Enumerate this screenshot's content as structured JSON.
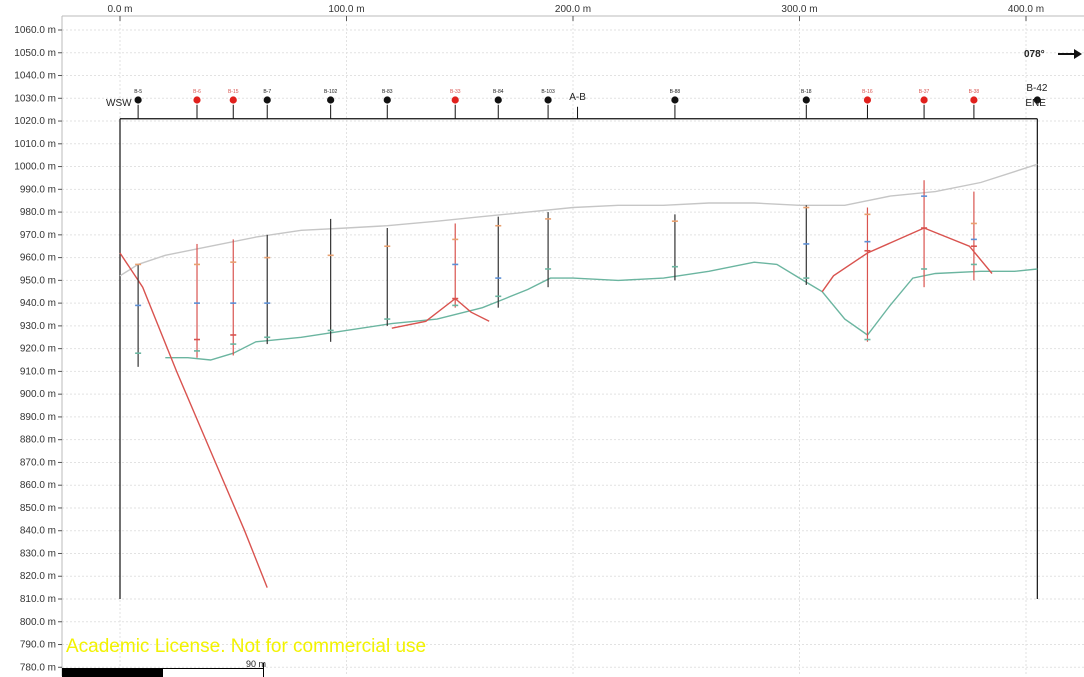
{
  "chart_data": {
    "type": "line",
    "title": "",
    "section_name": "A-B",
    "start_label": "WSW",
    "end_label": "ENE",
    "end_borehole_label": "B-42",
    "azimuth": "078°",
    "x_unit": "m",
    "y_unit": "m",
    "xlim": [
      -25,
      415
    ],
    "ylim": [
      776,
      1064
    ],
    "x_ticks": [
      {
        "value": 0,
        "label": "0.0 m"
      },
      {
        "value": 100,
        "label": "100.0 m"
      },
      {
        "value": 200,
        "label": "200.0 m"
      },
      {
        "value": 300,
        "label": "300.0 m"
      },
      {
        "value": 400,
        "label": "400.0 m"
      }
    ],
    "y_ticks": [
      {
        "value": 780,
        "label": "780.0 m"
      },
      {
        "value": 790,
        "label": "790.0 m"
      },
      {
        "value": 800,
        "label": "800.0 m"
      },
      {
        "value": 810,
        "label": "810.0 m"
      },
      {
        "value": 820,
        "label": "820.0 m"
      },
      {
        "value": 830,
        "label": "830.0 m"
      },
      {
        "value": 840,
        "label": "840.0 m"
      },
      {
        "value": 850,
        "label": "850.0 m"
      },
      {
        "value": 860,
        "label": "860.0 m"
      },
      {
        "value": 870,
        "label": "870.0 m"
      },
      {
        "value": 880,
        "label": "880.0 m"
      },
      {
        "value": 890,
        "label": "890.0 m"
      },
      {
        "value": 900,
        "label": "900.0 m"
      },
      {
        "value": 910,
        "label": "910.0 m"
      },
      {
        "value": 920,
        "label": "920.0 m"
      },
      {
        "value": 930,
        "label": "930.0 m"
      },
      {
        "value": 940,
        "label": "940.0 m"
      },
      {
        "value": 950,
        "label": "950.0 m"
      },
      {
        "value": 960,
        "label": "960.0 m"
      },
      {
        "value": 970,
        "label": "970.0 m"
      },
      {
        "value": 980,
        "label": "980.0 m"
      },
      {
        "value": 990,
        "label": "990.0 m"
      },
      {
        "value": 1000,
        "label": "1000.0 m"
      },
      {
        "value": 1010,
        "label": "1010.0 m"
      },
      {
        "value": 1020,
        "label": "1020.0 m"
      },
      {
        "value": 1030,
        "label": "1030.0 m"
      },
      {
        "value": 1040,
        "label": "1040.0 m"
      },
      {
        "value": 1050,
        "label": "1050.0 m"
      },
      {
        "value": 1060,
        "label": "1060.0 m"
      }
    ],
    "grid": true,
    "frame": {
      "x_start": 0,
      "x_end": 405,
      "top": 1021,
      "bottom": 810,
      "section_mark_x": 202
    },
    "colors": {
      "terrain": "#c6c6c6",
      "aquifer": "#6bb5a0",
      "red_horizon": "#d9534f",
      "borehole_black": "#111111",
      "borehole_red": "#e0201c",
      "watermark": "#f2f200"
    },
    "series": [
      {
        "name": "",
        "color": "#c6c6c6",
        "x": [
          0,
          8,
          20,
          40,
          60,
          80,
          100,
          118,
          140,
          160,
          180,
          200,
          220,
          240,
          260,
          280,
          300,
          320,
          340,
          360,
          380,
          405
        ],
        "y": [
          952,
          957,
          961,
          965,
          969,
          972,
          973,
          974,
          976,
          978,
          980,
          982,
          983,
          983,
          984,
          984,
          983,
          983,
          987,
          989,
          993,
          1001
        ]
      },
      {
        "name": "",
        "color": "#6bb5a0",
        "x": [
          20,
          30,
          40,
          50,
          60,
          80,
          100,
          120,
          140,
          160,
          170,
          180,
          190,
          200,
          220,
          240,
          260,
          280,
          290,
          300,
          305,
          310,
          320,
          330,
          340,
          350,
          360,
          380,
          395,
          405
        ],
        "y": [
          916,
          916,
          915,
          918,
          923,
          925,
          928,
          931,
          933,
          938,
          942,
          946,
          951,
          951,
          950,
          951,
          954,
          958,
          957,
          951,
          948,
          945,
          933,
          926,
          939,
          951,
          953,
          954,
          954,
          955
        ]
      },
      {
        "name": "",
        "color": "#d9534f",
        "x": [
          0,
          10,
          25,
          40,
          55,
          65
        ],
        "y": [
          962,
          947,
          910,
          875,
          840,
          815
        ]
      },
      {
        "name": "",
        "color": "#d9534f",
        "x": [
          120,
          135,
          148,
          155,
          163
        ],
        "y": [
          929,
          932,
          942,
          936,
          932
        ]
      },
      {
        "name": "",
        "color": "#d9534f",
        "x": [
          310,
          315,
          330,
          355,
          375,
          385
        ],
        "y": [
          945,
          952,
          962,
          973,
          965,
          953
        ]
      }
    ],
    "boreholes": [
      {
        "label": "B-5",
        "x": 8,
        "color": "black",
        "top": 957,
        "bottom": 912,
        "marks": [
          {
            "y": 957,
            "c": "#e8a070"
          },
          {
            "y": 939,
            "c": "#5c8fd6"
          },
          {
            "y": 918,
            "c": "#6bb5a0"
          }
        ]
      },
      {
        "label": "B-6",
        "x": 34,
        "color": "red",
        "top": 966,
        "bottom": 916,
        "marks": [
          {
            "y": 957,
            "c": "#e8a070"
          },
          {
            "y": 940,
            "c": "#5c8fd6"
          },
          {
            "y": 924,
            "c": "#d9534f"
          },
          {
            "y": 919,
            "c": "#6bb5a0"
          }
        ]
      },
      {
        "label": "B-15",
        "x": 50,
        "color": "red",
        "top": 968,
        "bottom": 917,
        "marks": [
          {
            "y": 958,
            "c": "#e8a070"
          },
          {
            "y": 940,
            "c": "#5c8fd6"
          },
          {
            "y": 926,
            "c": "#d9534f"
          },
          {
            "y": 922,
            "c": "#6bb5a0"
          }
        ]
      },
      {
        "label": "B-7",
        "x": 65,
        "color": "black",
        "top": 970,
        "bottom": 922,
        "marks": [
          {
            "y": 960,
            "c": "#e8a070"
          },
          {
            "y": 940,
            "c": "#5c8fd6"
          },
          {
            "y": 925,
            "c": "#6bb5a0"
          }
        ]
      },
      {
        "label": "B-102",
        "x": 93,
        "color": "black",
        "top": 977,
        "bottom": 923,
        "marks": [
          {
            "y": 961,
            "c": "#e8a070"
          },
          {
            "y": 928,
            "c": "#6bb5a0"
          }
        ]
      },
      {
        "label": "B-83",
        "x": 118,
        "color": "black",
        "top": 973,
        "bottom": 930,
        "marks": [
          {
            "y": 965,
            "c": "#e8a070"
          },
          {
            "y": 933,
            "c": "#6bb5a0"
          }
        ]
      },
      {
        "label": "B-33",
        "x": 148,
        "color": "red",
        "top": 975,
        "bottom": 938,
        "marks": [
          {
            "y": 968,
            "c": "#e8a070"
          },
          {
            "y": 957,
            "c": "#5c8fd6"
          },
          {
            "y": 942,
            "c": "#d9534f"
          },
          {
            "y": 939,
            "c": "#6bb5a0"
          }
        ]
      },
      {
        "label": "B-84",
        "x": 167,
        "color": "black",
        "top": 978,
        "bottom": 938,
        "marks": [
          {
            "y": 974,
            "c": "#e8a070"
          },
          {
            "y": 951,
            "c": "#5c8fd6"
          },
          {
            "y": 943,
            "c": "#6bb5a0"
          }
        ]
      },
      {
        "label": "B-103",
        "x": 189,
        "color": "black",
        "top": 980,
        "bottom": 947,
        "marks": [
          {
            "y": 977,
            "c": "#e8a070"
          },
          {
            "y": 955,
            "c": "#6bb5a0"
          }
        ]
      },
      {
        "label": "B-88",
        "x": 245,
        "color": "black",
        "top": 979,
        "bottom": 950,
        "marks": [
          {
            "y": 976,
            "c": "#e8a070"
          },
          {
            "y": 956,
            "c": "#6bb5a0"
          }
        ]
      },
      {
        "label": "B-18",
        "x": 303,
        "color": "black",
        "top": 983,
        "bottom": 948,
        "marks": [
          {
            "y": 982,
            "c": "#e8a070"
          },
          {
            "y": 966,
            "c": "#5c8fd6"
          },
          {
            "y": 951,
            "c": "#6bb5a0"
          }
        ]
      },
      {
        "label": "B-16",
        "x": 330,
        "color": "red",
        "top": 982,
        "bottom": 923,
        "marks": [
          {
            "y": 979,
            "c": "#e8a070"
          },
          {
            "y": 967,
            "c": "#5c8fd6"
          },
          {
            "y": 963,
            "c": "#d9534f"
          },
          {
            "y": 924,
            "c": "#6bb5a0"
          }
        ]
      },
      {
        "label": "B-37",
        "x": 355,
        "color": "red",
        "top": 994,
        "bottom": 947,
        "marks": [
          {
            "y": 987,
            "c": "#5c8fd6"
          },
          {
            "y": 973,
            "c": "#d9534f"
          },
          {
            "y": 955,
            "c": "#6bb5a0"
          }
        ]
      },
      {
        "label": "B-38",
        "x": 377,
        "color": "red",
        "top": 989,
        "bottom": 950,
        "marks": [
          {
            "y": 975,
            "c": "#e8a070"
          },
          {
            "y": 968,
            "c": "#5c8fd6"
          },
          {
            "y": 965,
            "c": "#d9534f"
          },
          {
            "y": 957,
            "c": "#6bb5a0"
          }
        ]
      }
    ]
  },
  "watermark": "Academic License. Not for commercial use",
  "scale_bar": {
    "label": "90 m",
    "length_m": 90
  }
}
